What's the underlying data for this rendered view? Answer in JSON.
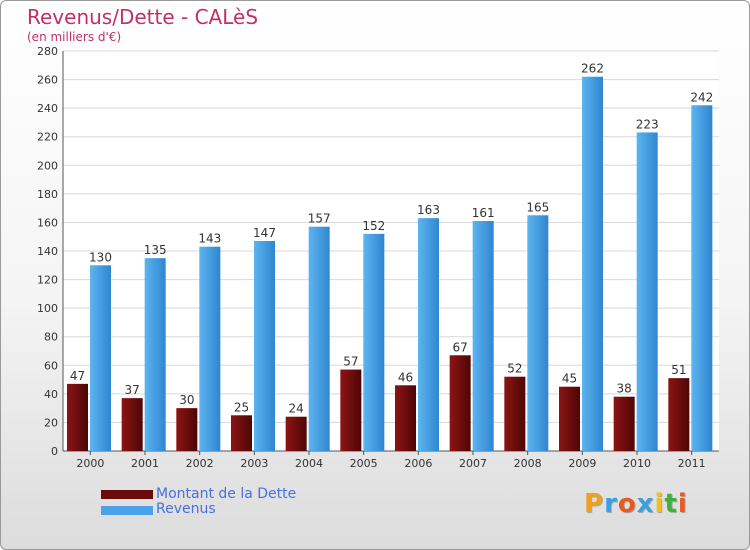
{
  "title": "Revenus/Dette - CALèS",
  "subtitle": "(en milliers d'€)",
  "legend": [
    {
      "label": "Montant de la Dette",
      "color": "#6b0a0a"
    },
    {
      "label": "Revenus",
      "color": "#4aa3e8"
    }
  ],
  "logo": {
    "text": "Proxiti",
    "letters": [
      {
        "ch": "P",
        "color": "#f0a020"
      },
      {
        "ch": "r",
        "color": "#3aa0e0"
      },
      {
        "ch": "o",
        "color": "#e85a20"
      },
      {
        "ch": "x",
        "color": "#3aa0e0"
      },
      {
        "ch": "i",
        "color": "#f0c020"
      },
      {
        "ch": "t",
        "color": "#40b040"
      },
      {
        "ch": "i",
        "color": "#e85a20"
      }
    ]
  },
  "chart_data": {
    "type": "bar",
    "title": "Revenus/Dette - CALèS",
    "subtitle": "(en milliers d'€)",
    "categories": [
      "2000",
      "2001",
      "2002",
      "2003",
      "2004",
      "2005",
      "2006",
      "2007",
      "2008",
      "2009",
      "2010",
      "2011"
    ],
    "series": [
      {
        "name": "Montant de la Dette",
        "color": "#6b0a0a",
        "values": [
          47,
          37,
          30,
          25,
          24,
          57,
          46,
          67,
          52,
          45,
          38,
          51
        ]
      },
      {
        "name": "Revenus",
        "color": "#4aa3e8",
        "values": [
          130,
          135,
          143,
          147,
          157,
          152,
          163,
          161,
          165,
          262,
          223,
          242
        ]
      }
    ],
    "ylim": [
      0,
      280
    ],
    "yticks": [
      0,
      20,
      40,
      60,
      80,
      100,
      120,
      140,
      160,
      180,
      200,
      220,
      240,
      260,
      280
    ],
    "grid": true,
    "legend_position": "bottom-left"
  }
}
